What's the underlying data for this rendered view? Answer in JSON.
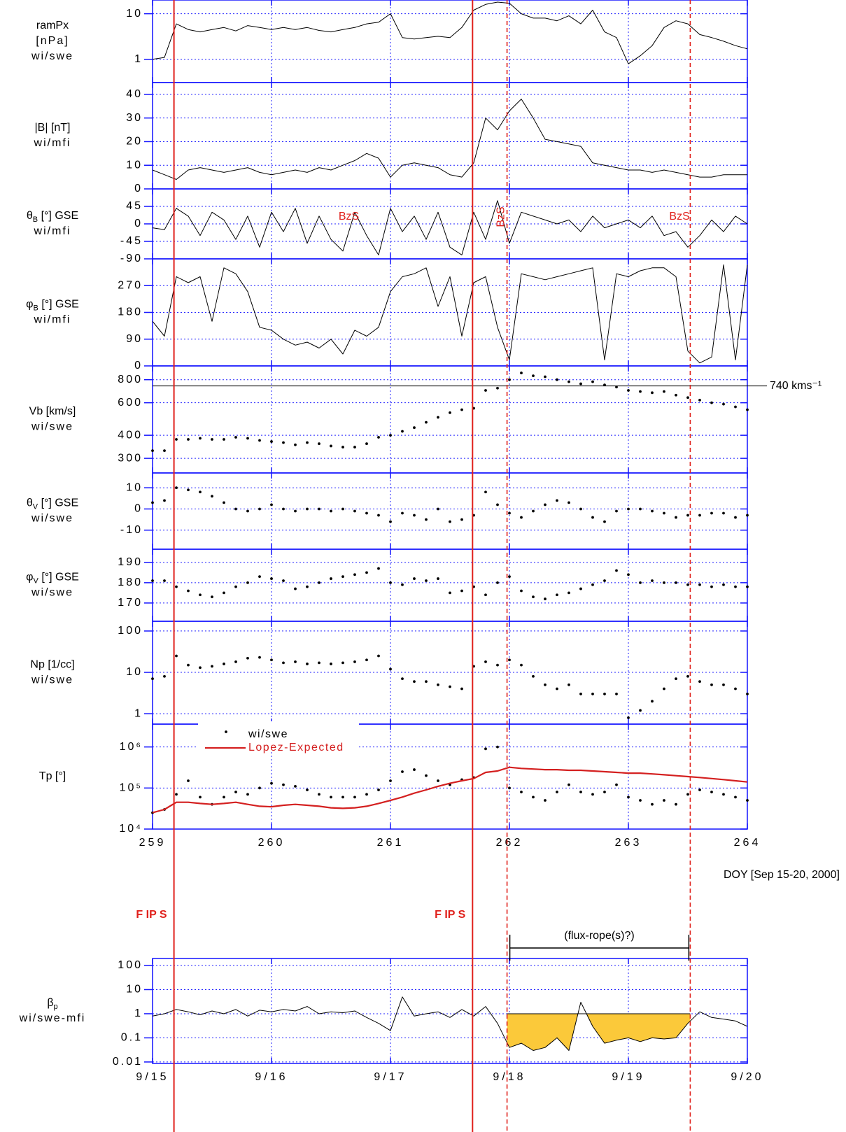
{
  "chart_data": {
    "type": "multi-panel",
    "xlim": [
      259,
      264
    ],
    "xticks": [
      259,
      260,
      261,
      262,
      263,
      264
    ],
    "xlabel": "DOY [Sep 15-20, 2000]",
    "x": [
      259,
      259.1,
      259.2,
      259.3,
      259.4,
      259.5,
      259.6,
      259.7,
      259.8,
      259.9,
      260,
      260.1,
      260.2,
      260.3,
      260.4,
      260.5,
      260.6,
      260.7,
      260.8,
      260.9,
      261,
      261.1,
      261.2,
      261.3,
      261.4,
      261.5,
      261.6,
      261.7,
      261.8,
      261.9,
      262,
      262.1,
      262.2,
      262.3,
      262.4,
      262.5,
      262.6,
      262.7,
      262.8,
      262.9,
      263,
      263.1,
      263.2,
      263.3,
      263.4,
      263.5,
      263.6,
      263.7,
      263.8,
      263.9,
      264
    ],
    "marker_color": "#e0201b",
    "markers": [
      {
        "x": 259.18,
        "style": "solid",
        "label": "F IP S"
      },
      {
        "x": 261.69,
        "style": "solid",
        "label": "F IP S"
      },
      {
        "x": 261.98,
        "style": "dashed"
      },
      {
        "x": 263.52,
        "style": "dashed"
      }
    ],
    "interval_label": "(flux-rope(s)?)",
    "panels": [
      {
        "type": "line",
        "ylabel": [
          "ramPx",
          "[nPa]",
          "wi/swe"
        ],
        "log": true,
        "ylim": [
          0.31,
          20
        ],
        "yticks": [
          1,
          10
        ],
        "color": "#000000",
        "values": [
          1.0,
          1.1,
          6,
          4.5,
          4,
          4.5,
          5,
          4.2,
          5.5,
          5,
          4.5,
          5,
          4.5,
          5,
          4.3,
          4,
          4.5,
          5,
          6,
          6.5,
          10,
          3,
          2.8,
          3,
          3.2,
          3,
          5,
          12,
          16,
          18,
          17,
          10,
          8,
          8,
          7,
          9,
          6,
          12,
          4,
          3,
          0.8,
          1.2,
          2,
          5,
          7,
          6,
          3.5,
          3,
          2.5,
          2,
          1.7
        ]
      },
      {
        "type": "line",
        "ylabel": [
          "|B|  [nT]",
          "wi/mfi"
        ],
        "ylim": [
          0,
          45
        ],
        "yticks": [
          0,
          10,
          20,
          30,
          40
        ],
        "color": "#000000",
        "values": [
          8,
          6,
          4,
          8,
          9,
          8,
          7,
          8,
          9,
          7,
          6,
          7,
          8,
          7,
          9,
          8,
          10,
          12,
          15,
          13,
          5,
          10,
          11,
          10,
          9,
          6,
          5,
          11,
          30,
          25,
          33,
          38,
          30,
          21,
          20,
          19,
          18,
          11,
          10,
          9,
          8,
          8,
          7,
          8,
          7,
          6,
          5,
          5,
          6,
          6,
          6
        ]
      },
      {
        "type": "line",
        "ylabel": [
          {
            "symbol": "θ",
            "sub": "B",
            "rest": " [°] GSE"
          },
          "wi/mfi"
        ],
        "ylim": [
          -90,
          90
        ],
        "yticks": [
          -90,
          -45,
          0,
          45
        ],
        "color": "#000000",
        "annotations": [
          {
            "text": "BzS",
            "x": 260.65
          },
          {
            "text": "BzS",
            "x": 261.93,
            "rotate": -90
          },
          {
            "text": "BzS",
            "x": 263.43
          }
        ],
        "annotation_color": "#e0201b",
        "values": [
          -10,
          -15,
          40,
          20,
          -30,
          30,
          10,
          -40,
          20,
          -60,
          30,
          -20,
          40,
          -50,
          20,
          -40,
          -70,
          30,
          -30,
          -80,
          40,
          -20,
          20,
          -40,
          30,
          -60,
          -80,
          30,
          -40,
          60,
          -50,
          30,
          20,
          10,
          0,
          10,
          -20,
          20,
          -10,
          0,
          10,
          -10,
          20,
          -30,
          -20,
          -60,
          -30,
          10,
          -20,
          20,
          0
        ]
      },
      {
        "type": "line",
        "ylabel": [
          {
            "symbol": "φ",
            "sub": "B",
            "rest": " [°]  GSE"
          },
          "wi/mfi"
        ],
        "ylim": [
          0,
          360
        ],
        "yticks": [
          0,
          90,
          180,
          270
        ],
        "color": "#000000",
        "values": [
          150,
          100,
          300,
          280,
          300,
          150,
          330,
          310,
          250,
          130,
          120,
          90,
          70,
          80,
          60,
          90,
          40,
          120,
          100,
          130,
          250,
          300,
          310,
          330,
          200,
          300,
          100,
          280,
          300,
          130,
          20,
          310,
          300,
          290,
          300,
          310,
          320,
          330,
          20,
          310,
          300,
          320,
          330,
          330,
          300,
          50,
          10,
          30,
          340,
          20,
          340
        ]
      },
      {
        "type": "scatter",
        "ylabel": [
          "Vb  [km/s]",
          "wi/swe"
        ],
        "log": true,
        "ylim": [
          250,
          950
        ],
        "yticks": [
          300,
          400,
          600,
          800
        ],
        "color": "#000000",
        "reference": {
          "value": 740,
          "label": "740  kms⁻¹"
        },
        "values": [
          330,
          330,
          380,
          380,
          385,
          380,
          380,
          390,
          385,
          375,
          370,
          365,
          355,
          365,
          360,
          350,
          345,
          345,
          360,
          390,
          400,
          420,
          440,
          470,
          500,
          530,
          550,
          560,
          700,
          720,
          800,
          870,
          840,
          830,
          800,
          780,
          760,
          780,
          750,
          730,
          700,
          690,
          680,
          690,
          660,
          640,
          620,
          600,
          590,
          570,
          550
        ]
      },
      {
        "type": "scatter",
        "ylabel": [
          {
            "symbol": "θ",
            "sub": "V",
            "rest": " [°] GSE"
          },
          "wi/swe"
        ],
        "ylim": [
          -19,
          17
        ],
        "yticks": [
          -10,
          0,
          10
        ],
        "color": "#000000",
        "values": [
          3,
          4,
          10,
          9,
          8,
          6,
          3,
          0,
          -1,
          0,
          2,
          0,
          -1,
          0,
          0,
          -1,
          0,
          -1,
          -2,
          -3,
          -6,
          -2,
          -3,
          -5,
          0,
          -6,
          -5,
          -3,
          8,
          2,
          -2,
          -4,
          -1,
          2,
          4,
          3,
          0,
          -4,
          -6,
          -1,
          0,
          0,
          -1,
          -2,
          -4,
          -3,
          -3,
          -2,
          -2,
          -4,
          -3
        ]
      },
      {
        "type": "scatter",
        "ylabel": [
          {
            "symbol": "φ",
            "sub": "V",
            "rest": " [°] GSE"
          },
          "wi/swe"
        ],
        "ylim": [
          161,
          196.5
        ],
        "yticks": [
          170,
          180,
          190
        ],
        "color": "#000000",
        "values": [
          181,
          181,
          178,
          176,
          174,
          173,
          175,
          178,
          180,
          183,
          182,
          181,
          177,
          178,
          180,
          182,
          183,
          184,
          185,
          187,
          180,
          179,
          182,
          181,
          182,
          175,
          176,
          178,
          174,
          180,
          183,
          176,
          173,
          172,
          174,
          175,
          177,
          179,
          181,
          186,
          184,
          180,
          181,
          180,
          180,
          179,
          179,
          178,
          179,
          178,
          178
        ]
      },
      {
        "type": "scatter",
        "ylabel": [
          "Np  [1/cc]",
          "wi/swe"
        ],
        "log": true,
        "ylim": [
          0.56,
          172
        ],
        "yticks": [
          1,
          10,
          100
        ],
        "color": "#000000",
        "values": [
          7,
          8,
          25,
          15,
          13,
          14,
          16,
          18,
          22,
          23,
          20,
          17,
          18,
          16,
          17,
          16,
          17,
          18,
          20,
          25,
          12,
          7,
          6,
          6,
          5,
          4.5,
          4,
          14,
          18,
          15,
          20,
          15,
          8,
          5,
          4,
          5,
          3,
          3,
          3,
          3,
          0.8,
          1.2,
          2,
          4,
          7,
          8,
          6,
          5,
          5,
          4,
          3
        ]
      },
      {
        "type": "line",
        "ylabel": [
          "Tp  [°]"
        ],
        "log": true,
        "ylim": [
          10000,
          3600000
        ],
        "show_xticks": true,
        "yticks": [
          {
            "value": 10000,
            "label": "10⁴"
          },
          {
            "value": 100000,
            "label": "10⁵"
          },
          {
            "value": 1000000,
            "label": "10⁶"
          }
        ],
        "legend": "upper-left",
        "series": [
          {
            "name": "wi/swe",
            "color": "#000000",
            "style": "dots",
            "values": [
              25000,
              30000,
              70000,
              150000,
              60000,
              40000,
              60000,
              80000,
              70000,
              100000,
              130000,
              120000,
              110000,
              90000,
              70000,
              60000,
              60000,
              60000,
              70000,
              90000,
              150000,
              250000,
              280000,
              200000,
              150000,
              120000,
              160000,
              180000,
              900000,
              1000000,
              100000,
              80000,
              60000,
              50000,
              80000,
              120000,
              80000,
              70000,
              80000,
              120000,
              60000,
              50000,
              40000,
              50000,
              40000,
              70000,
              90000,
              80000,
              70000,
              60000,
              50000
            ]
          },
          {
            "name": "Lopez-Expected",
            "color": "#d42020",
            "style": "line",
            "values": [
              25000,
              30000,
              45000,
              45000,
              42000,
              40000,
              42000,
              45000,
              40000,
              36000,
              35000,
              38000,
              40000,
              38000,
              36000,
              33000,
              32000,
              33000,
              36000,
              42000,
              50000,
              60000,
              75000,
              90000,
              110000,
              130000,
              150000,
              170000,
              240000,
              260000,
              320000,
              300000,
              290000,
              280000,
              280000,
              270000,
              270000,
              260000,
              250000,
              240000,
              230000,
              230000,
              220000,
              210000,
              200000,
              190000,
              180000,
              170000,
              160000,
              150000,
              140000
            ]
          }
        ]
      },
      {
        "type": "line",
        "ylabel": [
          {
            "symbol": "β",
            "sub": "p"
          },
          "wi/swe-mfi"
        ],
        "log": true,
        "ylim": [
          0.0087,
          195
        ],
        "color": "#000000",
        "yticks": [
          0.01,
          0.1,
          1,
          10,
          100
        ],
        "xticks": [
          {
            "value": 259,
            "label": "9/15"
          },
          {
            "value": 260,
            "label": "9/16"
          },
          {
            "value": 261,
            "label": "9/17"
          },
          {
            "value": 262,
            "label": "9/18"
          },
          {
            "value": 263,
            "label": "9/19"
          },
          {
            "value": 264,
            "label": "9/20"
          }
        ],
        "fill": {
          "color": "#fbc93a",
          "level": 1
        },
        "values": [
          0.8,
          1,
          1.5,
          1.2,
          0.9,
          1.3,
          1,
          1.5,
          0.8,
          1.4,
          1.2,
          1.5,
          1.3,
          2,
          1,
          1.2,
          1.1,
          1.3,
          0.7,
          0.4,
          0.2,
          5,
          0.8,
          1,
          1.2,
          0.7,
          1.5,
          0.8,
          2,
          0.4,
          0.04,
          0.06,
          0.03,
          0.04,
          0.1,
          0.03,
          3,
          0.3,
          0.06,
          0.08,
          0.1,
          0.07,
          0.1,
          0.09,
          0.1,
          0.4,
          1.2,
          0.7,
          0.6,
          0.5,
          0.3
        ]
      }
    ]
  }
}
